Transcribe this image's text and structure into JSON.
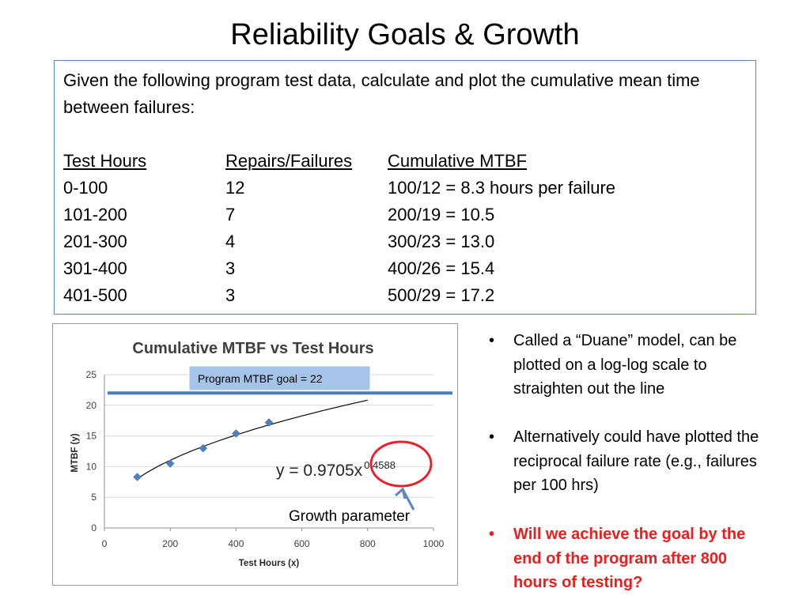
{
  "slide": {
    "title": "Reliability Goals & Growth"
  },
  "problem": {
    "intro": "Given the following program test data, calculate and plot the cumulative mean time between failures:",
    "headers": [
      "Test Hours",
      "Repairs/Failures",
      "Cumulative MTBF"
    ],
    "rows": [
      [
        "0-100",
        "12",
        "100/12 = 8.3 hours per failure"
      ],
      [
        "101-200",
        "7",
        "200/19 = 10.5"
      ],
      [
        "201-300",
        "4",
        "300/23 = 13.0"
      ],
      [
        "301-400",
        "3",
        "400/26 = 15.4"
      ],
      [
        "401-500",
        "3",
        "500/29 = 17.2"
      ]
    ]
  },
  "chart_data": {
    "type": "scatter",
    "title": "Cumulative MTBF vs Test Hours",
    "xlabel": "Test Hours (x)",
    "ylabel": "MTBF (y)",
    "xlim": [
      0,
      1000
    ],
    "ylim": [
      0,
      25
    ],
    "xticks": [
      "0",
      "200",
      "400",
      "600",
      "800",
      "1000"
    ],
    "yticks": [
      "0",
      "5",
      "10",
      "15",
      "20",
      "25"
    ],
    "grid": true,
    "points": [
      {
        "x": 100,
        "y": 8.3
      },
      {
        "x": 200,
        "y": 10.5
      },
      {
        "x": 300,
        "y": 13.0
      },
      {
        "x": 400,
        "y": 15.4
      },
      {
        "x": 500,
        "y": 17.2
      }
    ],
    "trendline": {
      "type": "power",
      "a": 0.9705,
      "b": 0.4588,
      "x_range": [
        100,
        800
      ]
    },
    "equation_base": "y = 0.9705x",
    "equation_exponent": "0.4588",
    "goal_line_value": 22,
    "goal_label": "Program MTBF goal = 22",
    "annotation": "Growth parameter",
    "colors": {
      "marker": "#4f81bd",
      "goal_line": "#4a7ebb",
      "goal_box": "#a6c3e8",
      "circle": "#e8202a",
      "arrow": "#5b86c0"
    }
  },
  "bullets": [
    {
      "text": "Called a “Duane” model, can be plotted on a log-log scale to straighten out the line",
      "emphasis": false
    },
    {
      "text": "Alternatively could have plotted the reciprocal failure rate (e.g., failures per 100 hrs)",
      "emphasis": false
    },
    {
      "text": "Will we achieve the goal by the end of the program after 800 hours of testing?",
      "emphasis": true
    }
  ]
}
